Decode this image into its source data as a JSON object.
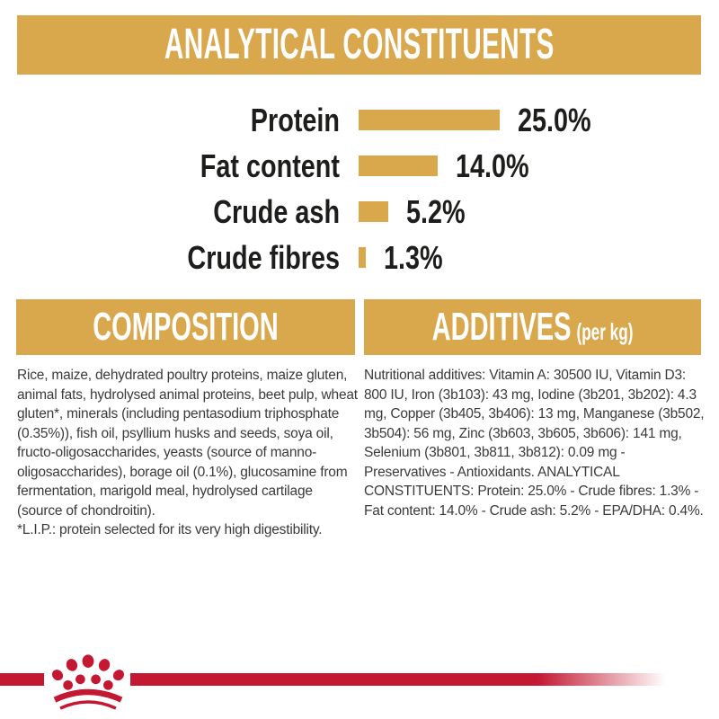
{
  "header": {
    "title": "ANALYTICAL CONSTITUENTS"
  },
  "chart_data": {
    "type": "bar",
    "orientation": "horizontal",
    "title": "ANALYTICAL CONSTITUENTS",
    "categories": [
      "Protein",
      "Fat content",
      "Crude ash",
      "Crude fibres"
    ],
    "values": [
      25.0,
      14.0,
      5.2,
      1.3
    ],
    "value_labels": [
      "25.0%",
      "14.0%",
      "5.2%",
      "1.3%"
    ],
    "unit": "%",
    "xlim": [
      0,
      25
    ],
    "grid": false,
    "legend": false,
    "bar_color": "#D9A74C"
  },
  "composition": {
    "title": "COMPOSITION",
    "body": "Rice, maize, dehydrated poultry proteins, maize gluten, animal fats, hydrolysed animal proteins, beet pulp, wheat gluten*, minerals (including pentasodium triphosphate (0.35%)), fish oil, psyllium husks and seeds, soya oil, fructo-oligosaccharides, yeasts (source of manno-oligosaccharides), borage oil (0.1%), glucosamine from fermentation, marigold meal, hydrolysed cartilage (source of chondroitin).",
    "footnote": "*L.I.P.: protein selected for its very high digestibility."
  },
  "additives": {
    "title": "ADDITIVES",
    "title_suffix": "(per kg)",
    "body": "Nutritional additives: Vitamin A: 30500 IU, Vitamin D3: 800 IU, Iron (3b103): 43 mg, Iodine (3b201, 3b202): 4.3 mg, Copper (3b405, 3b406): 13 mg, Manganese (3b502, 3b504): 56 mg, Zinc (3b603, 3b605, 3b606): 141 mg, Selenium (3b801, 3b811, 3b812): 0.09 mg - Preservatives - Antioxidants. ANALYTICAL CONSTITUENTS: Protein: 25.0% - Crude fibres: 1.3% - Fat content: 14.0% - Crude ash: 5.2% - EPA/DHA: 0.4%."
  },
  "footer": {
    "brand_logo": "royal-canin-crown"
  },
  "colors": {
    "gold": "#D9A74C",
    "red": "#C41731",
    "text_dark": "#1d1d1b",
    "text_body": "#3a3a3a"
  }
}
